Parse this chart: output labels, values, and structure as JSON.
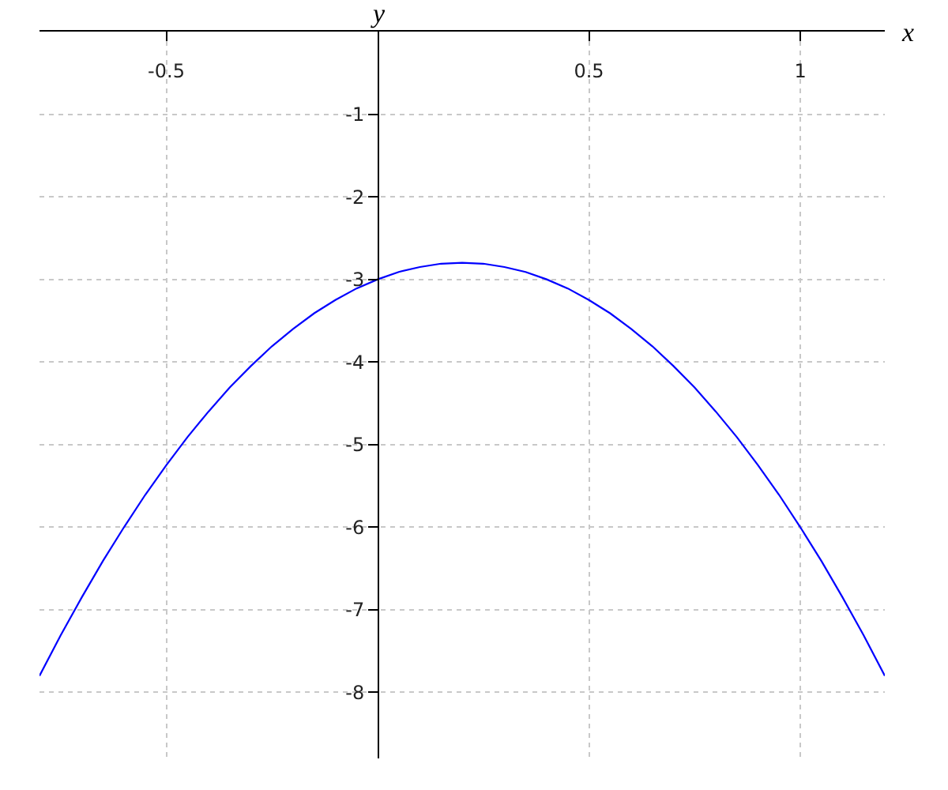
{
  "chart_data": {
    "type": "line",
    "xlabel": "x",
    "ylabel": "y",
    "x": [
      -0.8,
      -0.75,
      -0.7,
      -0.65,
      -0.6,
      -0.55,
      -0.5,
      -0.45,
      -0.4,
      -0.35,
      -0.3,
      -0.25,
      -0.2,
      -0.15,
      -0.1,
      -0.05,
      0,
      0.05,
      0.1,
      0.15,
      0.2,
      0.25,
      0.3,
      0.35,
      0.4,
      0.45,
      0.5,
      0.55,
      0.6,
      0.65,
      0.7,
      0.75,
      0.8,
      0.85,
      0.9,
      0.95,
      1,
      1.05,
      1.1,
      1.15,
      1.2
    ],
    "series": [
      {
        "color": "#0000ff",
        "values": [
          -7.8,
          -7.31,
          -6.85,
          -6.41,
          -6.0,
          -5.61,
          -5.25,
          -4.91,
          -4.6,
          -4.31,
          -4.05,
          -3.81,
          -3.6,
          -3.41,
          -3.25,
          -3.11,
          -3.0,
          -2.91,
          -2.85,
          -2.81,
          -2.8,
          -2.81,
          -2.85,
          -2.91,
          -3.0,
          -3.11,
          -3.25,
          -3.41,
          -3.6,
          -3.81,
          -4.05,
          -4.31,
          -4.6,
          -4.91,
          -5.25,
          -5.61,
          -6.0,
          -6.41,
          -6.85,
          -7.31,
          -7.8
        ]
      }
    ],
    "xlim": [
      -0.8,
      1.2
    ],
    "ylim": [
      -8.8,
      0
    ],
    "xticks": [
      -0.5,
      0.5,
      1
    ],
    "yticks": [
      -1,
      -2,
      -3,
      -4,
      -5,
      -6,
      -7,
      -8
    ],
    "grid": true
  }
}
